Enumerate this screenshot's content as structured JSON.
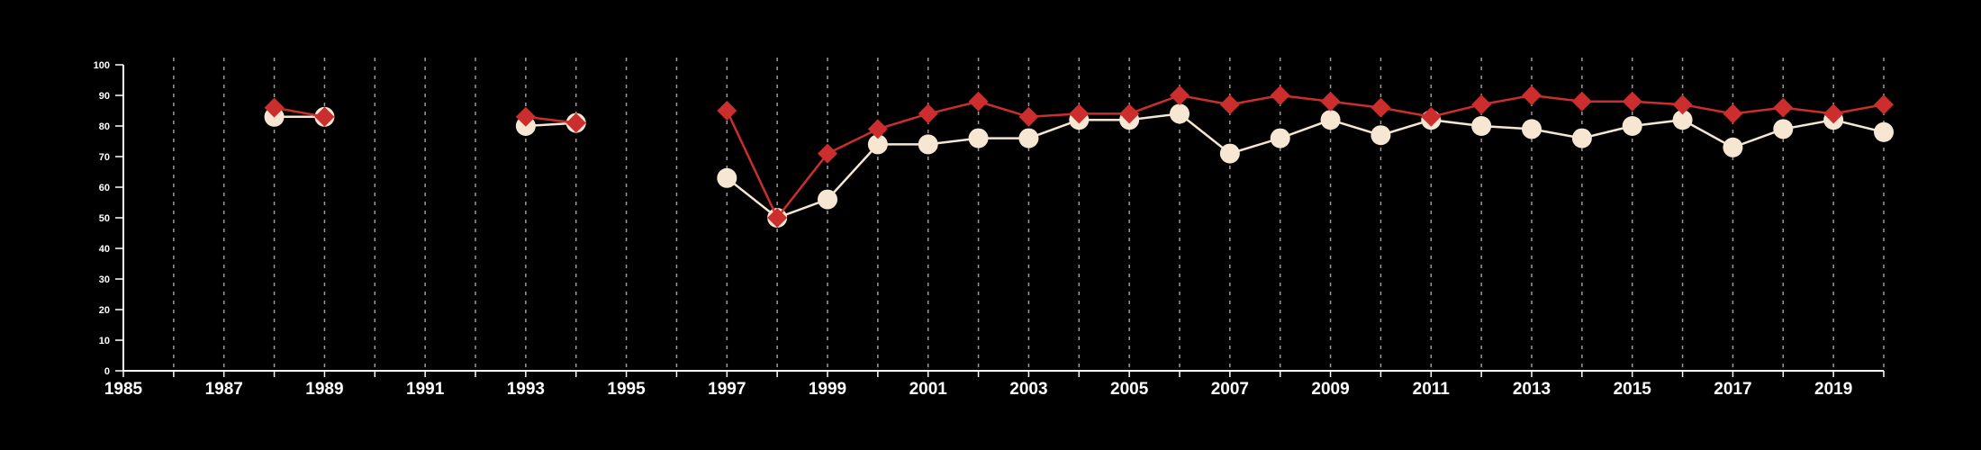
{
  "chart_data": {
    "type": "line",
    "title": "",
    "xlabel": "",
    "ylabel": "",
    "xlim": [
      1985,
      2020
    ],
    "ylim": [
      0,
      100
    ],
    "x_ticks": [
      "1985",
      "1987",
      "1989",
      "1991",
      "1993",
      "1995",
      "1997",
      "1999",
      "2001",
      "2003",
      "2005",
      "2007",
      "2009",
      "2011",
      "2013",
      "2015",
      "2017",
      "2019"
    ],
    "y_ticks": [
      "0",
      "10",
      "20",
      "30",
      "40",
      "50",
      "60",
      "70",
      "80",
      "90",
      "100"
    ],
    "grid": "vertical dashed lines at every year",
    "legend": "none",
    "x": [
      1988,
      1989,
      1990,
      1991,
      1992,
      1993,
      1994,
      1995,
      1996,
      1997,
      1998,
      1999,
      2000,
      2001,
      2002,
      2003,
      2004,
      2005,
      2006,
      2007,
      2008,
      2009,
      2010,
      2011,
      2012,
      2013,
      2014,
      2015,
      2016,
      2017,
      2018,
      2019,
      2020
    ],
    "series": [
      {
        "marker": "circle",
        "color": "#f7e7d2",
        "values": [
          83,
          83,
          null,
          null,
          null,
          80,
          81,
          null,
          null,
          63,
          50,
          56,
          74,
          74,
          76,
          76,
          82,
          82,
          84,
          71,
          76,
          82,
          77,
          82,
          80,
          79,
          76,
          80,
          82,
          73,
          79,
          82,
          78
        ]
      },
      {
        "marker": "diamond",
        "color": "#cc2e2e",
        "values": [
          86,
          83,
          null,
          null,
          null,
          83,
          81,
          null,
          null,
          85,
          50,
          71,
          79,
          84,
          88,
          83,
          84,
          84,
          90,
          87,
          90,
          88,
          86,
          83,
          87,
          90,
          88,
          88,
          87,
          84,
          86,
          84,
          87
        ]
      }
    ]
  }
}
